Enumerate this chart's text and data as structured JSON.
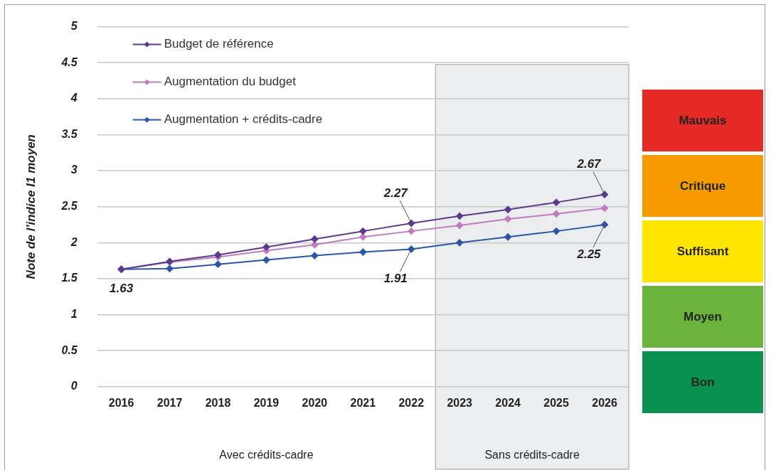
{
  "chart_data": {
    "type": "line",
    "ylabel": "Note de l'indice I1 moyen",
    "categories": [
      "2016",
      "2017",
      "2018",
      "2019",
      "2020",
      "2021",
      "2022",
      "2023",
      "2024",
      "2025",
      "2026"
    ],
    "series": [
      {
        "name": "Budget de référence",
        "color": "#5b3a8e",
        "values": [
          1.63,
          1.74,
          1.83,
          1.94,
          2.05,
          2.16,
          2.27,
          2.37,
          2.46,
          2.56,
          2.67
        ]
      },
      {
        "name": "Augmentation du budget",
        "color": "#c27bbf",
        "values": [
          1.63,
          1.73,
          1.8,
          1.89,
          1.97,
          2.08,
          2.16,
          2.24,
          2.33,
          2.4,
          2.48
        ]
      },
      {
        "name": "Augmentation + crédits-cadre",
        "color": "#2a55a8",
        "values": [
          1.63,
          1.64,
          1.7,
          1.76,
          1.82,
          1.87,
          1.91,
          2.0,
          2.08,
          2.16,
          2.25
        ]
      }
    ],
    "ylim": [
      0,
      5
    ],
    "yticks": [
      0,
      0.5,
      1,
      1.5,
      2,
      2.5,
      3,
      3.5,
      4,
      4.5,
      5
    ],
    "grid": "y",
    "legend": "top left",
    "marker": "diamond",
    "line_style": "solid",
    "bands": [
      {
        "axis": "x",
        "from": "2023",
        "to": "2026",
        "label": "Sans crédits-cadre",
        "color": "#e4e7e9"
      }
    ],
    "annotations": [
      {
        "text": "1.63",
        "x": "2016",
        "y": 1.63
      },
      {
        "text": "2.27",
        "x": "2022",
        "y": 2.27
      },
      {
        "text": "1.91",
        "x": "2022",
        "y": 1.91
      },
      {
        "text": "2.67",
        "x": "2026",
        "y": 2.67
      },
      {
        "text": "2.25",
        "x": "2026",
        "y": 2.25
      },
      "Avec crédits-cadre",
      "Mauvais",
      "Critique",
      "Suffisant",
      "Moyen",
      "Bon"
    ]
  }
}
